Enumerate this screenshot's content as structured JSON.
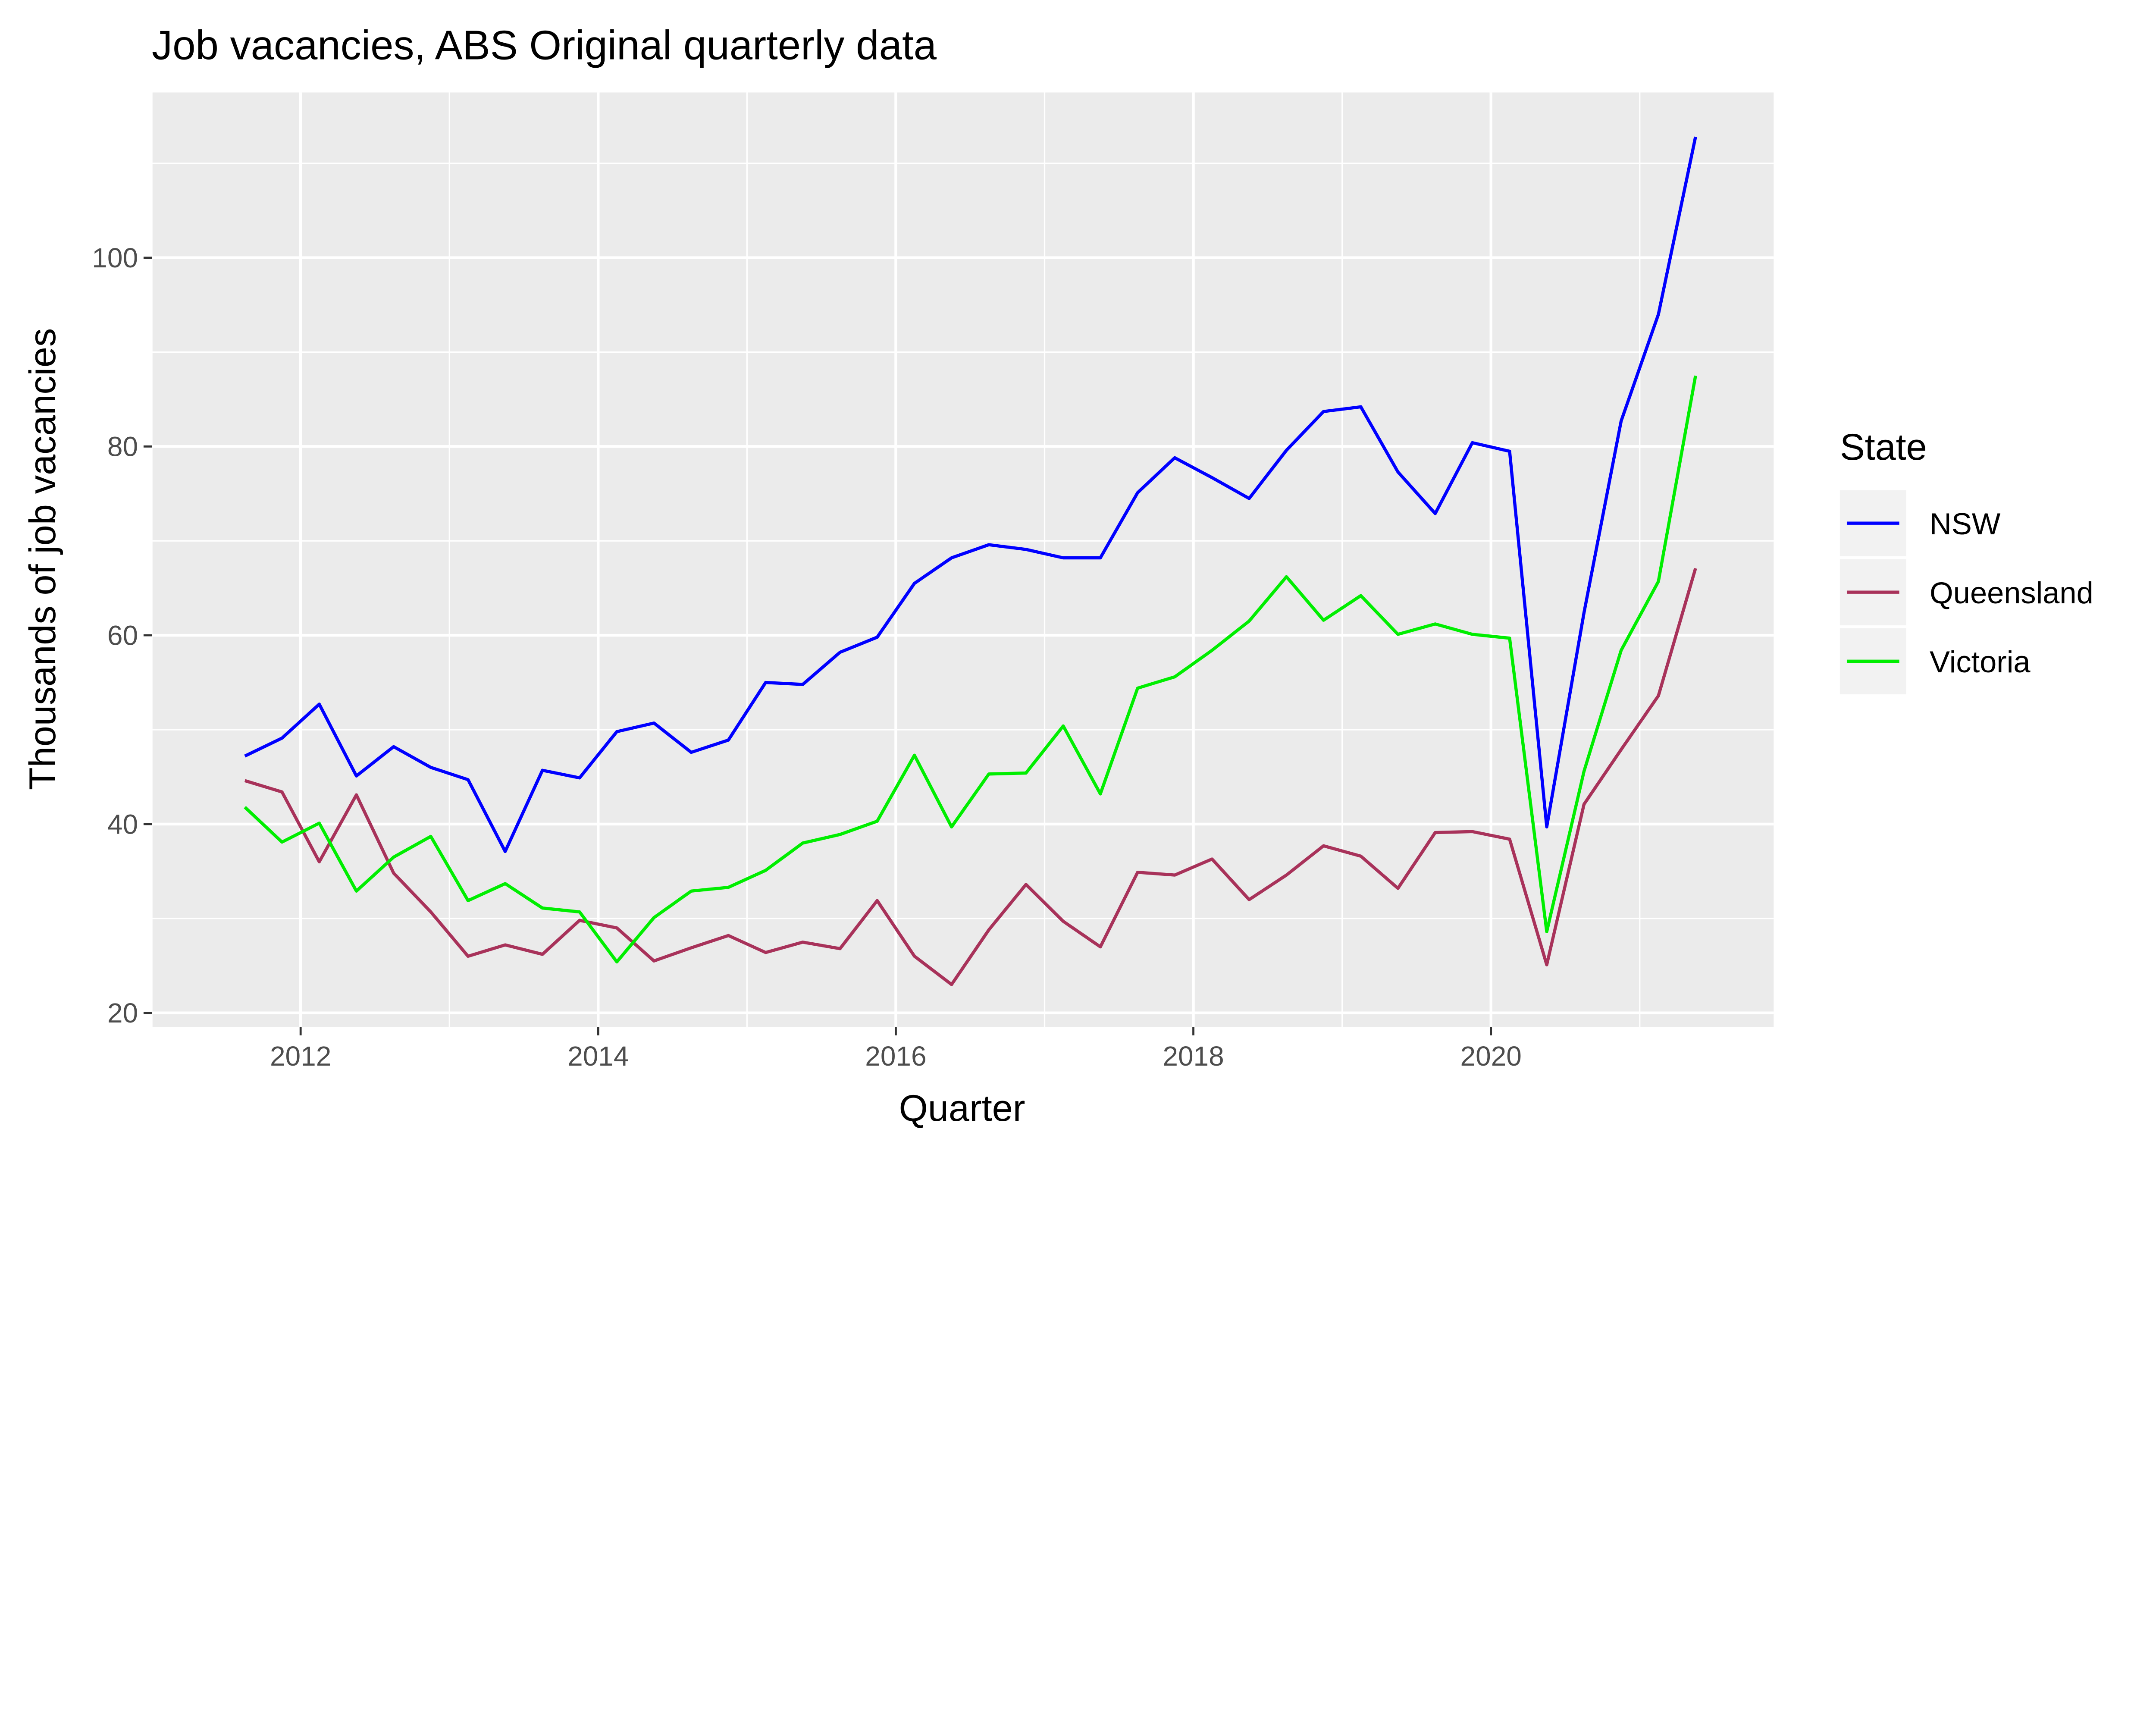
{
  "chart_data": {
    "type": "line",
    "title": "Job vacancies, ABS Original quarterly data",
    "xlabel": "Quarter",
    "ylabel": "Thousands of job vacancies",
    "x_ticks": [
      "2012",
      "2014",
      "2016",
      "2018",
      "2020"
    ],
    "y_ticks": [
      20,
      40,
      60,
      80,
      100
    ],
    "ylim": [
      18.5,
      117.5
    ],
    "xlim": [
      "2011",
      "2021-11"
    ],
    "grid": true,
    "legend": {
      "title": "State",
      "position": "right"
    },
    "x": [
      "2011-08",
      "2011-11",
      "2012-02",
      "2012-05",
      "2012-08",
      "2012-11",
      "2013-02",
      "2013-05",
      "2013-08",
      "2013-11",
      "2014-02",
      "2014-05",
      "2014-08",
      "2014-11",
      "2015-02",
      "2015-05",
      "2015-08",
      "2015-11",
      "2016-02",
      "2016-05",
      "2016-08",
      "2016-11",
      "2017-02",
      "2017-05",
      "2017-08",
      "2017-11",
      "2018-02",
      "2018-05",
      "2018-08",
      "2018-11",
      "2019-02",
      "2019-05",
      "2019-08",
      "2019-11",
      "2020-02",
      "2020-05",
      "2020-08",
      "2020-11",
      "2021-02",
      "2021-05"
    ],
    "series": [
      {
        "name": "NSW",
        "color": "#0000FF",
        "values": [
          47.2,
          49.1,
          52.7,
          45.1,
          48.2,
          46.0,
          44.7,
          37.1,
          45.7,
          44.9,
          49.8,
          50.7,
          47.6,
          48.9,
          55.0,
          54.8,
          58.2,
          59.8,
          65.5,
          68.2,
          69.6,
          69.1,
          68.2,
          68.2,
          75.1,
          78.8,
          76.7,
          74.5,
          79.6,
          83.7,
          84.2,
          77.3,
          72.9,
          80.4,
          79.5,
          39.7,
          62.4,
          82.7,
          94.0,
          112.8
        ]
      },
      {
        "name": "Queensland",
        "color": "#A8325A",
        "values": [
          44.6,
          43.4,
          36.0,
          43.1,
          34.8,
          30.7,
          26.0,
          27.2,
          26.2,
          29.8,
          29.0,
          25.5,
          26.9,
          28.2,
          26.4,
          27.5,
          26.8,
          31.9,
          26.0,
          23.0,
          28.8,
          33.6,
          29.7,
          27.0,
          34.9,
          34.6,
          36.3,
          32.0,
          34.6,
          37.7,
          36.6,
          33.2,
          39.1,
          39.2,
          38.4,
          25.1,
          42.1,
          47.9,
          53.6,
          67.1
        ]
      },
      {
        "name": "Victoria",
        "color": "#00EE00",
        "values": [
          41.8,
          38.1,
          40.1,
          32.9,
          36.5,
          38.7,
          31.9,
          33.7,
          31.1,
          30.7,
          25.4,
          30.1,
          32.9,
          33.3,
          35.1,
          38.0,
          38.9,
          40.3,
          47.3,
          39.7,
          45.3,
          45.4,
          50.4,
          43.2,
          54.4,
          55.6,
          58.4,
          61.5,
          66.2,
          61.6,
          64.2,
          60.1,
          61.2,
          60.1,
          59.7,
          28.6,
          45.6,
          58.4,
          65.7,
          87.5
        ]
      }
    ]
  }
}
